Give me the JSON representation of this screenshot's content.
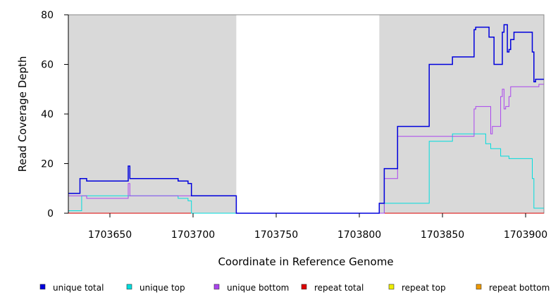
{
  "chart_data": {
    "type": "line",
    "xlabel": "Coordinate in Reference Genome",
    "ylabel": "Read Coverage Depth",
    "xlim": [
      1703625,
      1703911
    ],
    "ylim": [
      0,
      80
    ],
    "x_ticks": [
      1703650,
      1703700,
      1703750,
      1703800,
      1703850,
      1703900
    ],
    "x_tick_labels": [
      "1703650",
      "1703700",
      "1703750",
      "1703800",
      "1703850",
      "1703900"
    ],
    "y_ticks": [
      0,
      20,
      40,
      60,
      80
    ],
    "y_tick_labels": [
      "0",
      "20",
      "40",
      "60",
      "80"
    ],
    "shaded_regions": [
      [
        1703625,
        1703726
      ],
      [
        1703812,
        1703911
      ]
    ],
    "legend_position": "bottom",
    "series": [
      {
        "name": "unique total",
        "color": "#0000dd",
        "step": true,
        "x": [
          1703625,
          1703632,
          1703636,
          1703661,
          1703662,
          1703691,
          1703697,
          1703699,
          1703726,
          1703812,
          1703815,
          1703823,
          1703842,
          1703856,
          1703869,
          1703870,
          1703878,
          1703881,
          1703886,
          1703887,
          1703889,
          1703890,
          1703891,
          1703893,
          1703904,
          1703905,
          1703906,
          1703908,
          1703911
        ],
        "y": [
          8,
          14,
          13,
          19,
          14,
          13,
          12,
          7,
          0,
          4,
          18,
          35,
          60,
          63,
          74,
          75,
          71,
          60,
          73,
          76,
          65,
          66,
          70,
          73,
          65,
          53,
          54,
          54,
          54
        ]
      },
      {
        "name": "unique top",
        "color": "#00dddd",
        "step": true,
        "x": [
          1703625,
          1703631,
          1703633,
          1703661,
          1703662,
          1703691,
          1703697,
          1703699,
          1703726,
          1703812,
          1703815,
          1703842,
          1703856,
          1703876,
          1703879,
          1703883,
          1703885,
          1703890,
          1703904,
          1703905,
          1703906,
          1703911
        ],
        "y": [
          1,
          1,
          7,
          7,
          7,
          6,
          5,
          0,
          0,
          0,
          4,
          29,
          32,
          28,
          26,
          26,
          23,
          22,
          14,
          2,
          2,
          2
        ]
      },
      {
        "name": "unique bottom",
        "color": "#aa44ee",
        "step": true,
        "x": [
          1703625,
          1703636,
          1703661,
          1703662,
          1703699,
          1703726,
          1703812,
          1703815,
          1703823,
          1703856,
          1703869,
          1703870,
          1703879,
          1703880,
          1703885,
          1703886,
          1703887,
          1703888,
          1703890,
          1703891,
          1703893,
          1703904,
          1703905,
          1703908,
          1703911
        ],
        "y": [
          7,
          6,
          12,
          7,
          7,
          0,
          0,
          14,
          31,
          31,
          42,
          43,
          32,
          35,
          47,
          50,
          42,
          43,
          47,
          51,
          51,
          51,
          51,
          52,
          52
        ]
      },
      {
        "name": "repeat total",
        "color": "#dd0000",
        "step": true,
        "x": [
          1703625,
          1703911
        ],
        "y": [
          0,
          0
        ]
      },
      {
        "name": "repeat top",
        "color": "#eeee00",
        "step": true,
        "x": [
          1703625,
          1703911
        ],
        "y": [
          0,
          0
        ]
      },
      {
        "name": "repeat bottom",
        "color": "#ee9900",
        "step": true,
        "x": [
          1703625,
          1703911
        ],
        "y": [
          0,
          0
        ]
      }
    ]
  }
}
